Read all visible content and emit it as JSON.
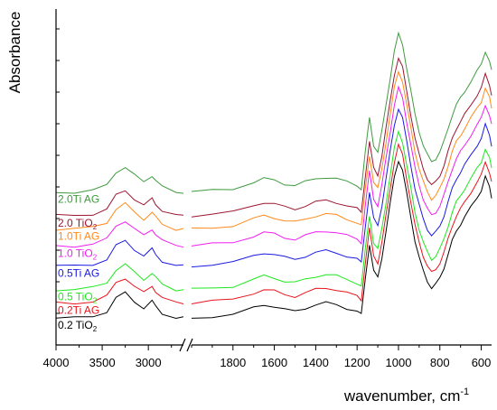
{
  "chart_data": {
    "type": "line",
    "xlabel": "wavenumber, cm",
    "xlabel_superscript": "-1",
    "ylabel": "Absorbance",
    "x_reversed": true,
    "axis_break": true,
    "x_segments": [
      {
        "xlim": [
          4000,
          2620
        ],
        "ticks": [
          4000,
          3500,
          3000
        ]
      },
      {
        "xlim": [
          2000,
          550
        ],
        "ticks": [
          1800,
          1600,
          1400,
          1200,
          1000,
          800,
          600
        ]
      }
    ],
    "ylim": [
      0,
      1
    ],
    "grid": false,
    "series": [
      {
        "name": "0.2 TiO",
        "sub": "2",
        "color": "#000000",
        "offset": 0.0,
        "label_prefix": "0.2 TiO",
        "label_sub": "2"
      },
      {
        "name": "0.2Ti AG",
        "color": "#e8141d",
        "offset": 0.045
      },
      {
        "name": "0.5 TiO",
        "sub": "2",
        "color": "#1ee81e",
        "offset": 0.085
      },
      {
        "name": "0.5Ti AG",
        "color": "#1a1ae0",
        "offset": 0.155
      },
      {
        "name": "1.0 TiO",
        "sub": "2",
        "color": "#f01ef0",
        "offset": 0.215
      },
      {
        "name": "1.0Ti AG",
        "color": "#ff8a1a",
        "offset": 0.265
      },
      {
        "name": "2.0 TiO",
        "sub": "2",
        "color": "#9c1630",
        "offset": 0.305
      },
      {
        "name": "2.0Ti AG",
        "color": "#3f9a3f",
        "offset": 0.375
      }
    ],
    "shape_points": {
      "x": [
        4000,
        3800,
        3600,
        3450,
        3350,
        3250,
        3150,
        3050,
        2960,
        2920,
        2850,
        2700,
        2620,
        2000,
        1900,
        1800,
        1700,
        1650,
        1600,
        1550,
        1500,
        1450,
        1400,
        1350,
        1300,
        1250,
        1200,
        1180,
        1160,
        1140,
        1120,
        1100,
        1080,
        1060,
        1040,
        1020,
        1000,
        980,
        960,
        940,
        920,
        900,
        880,
        860,
        840,
        820,
        800,
        780,
        760,
        740,
        720,
        700,
        680,
        650,
        620,
        600,
        580,
        560,
        550
      ],
      "y": [
        0.08,
        0.08,
        0.085,
        0.1,
        0.14,
        0.155,
        0.13,
        0.11,
        0.13,
        0.115,
        0.095,
        0.08,
        0.08,
        0.08,
        0.085,
        0.09,
        0.11,
        0.12,
        0.115,
        0.105,
        0.1,
        0.11,
        0.12,
        0.125,
        0.12,
        0.11,
        0.1,
        0.09,
        0.2,
        0.3,
        0.22,
        0.2,
        0.26,
        0.34,
        0.42,
        0.5,
        0.55,
        0.52,
        0.45,
        0.38,
        0.31,
        0.26,
        0.22,
        0.19,
        0.17,
        0.18,
        0.2,
        0.23,
        0.27,
        0.31,
        0.34,
        0.36,
        0.38,
        0.41,
        0.44,
        0.46,
        0.5,
        0.47,
        0.44
      ]
    }
  }
}
